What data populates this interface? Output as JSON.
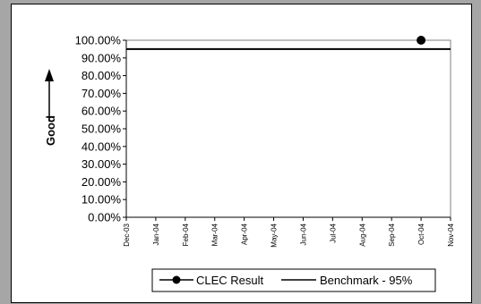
{
  "chart_data": {
    "type": "line",
    "ylabel": "Good",
    "categories": [
      "Dec-03",
      "Jan-04",
      "Feb-04",
      "Mar-04",
      "Apr-04",
      "May-04",
      "Jun-04",
      "Jul-04",
      "Aug-04",
      "Sep-04",
      "Oct-04",
      "Nov-04"
    ],
    "y_ticks": [
      "0.00%",
      "10.00%",
      "20.00%",
      "30.00%",
      "40.00%",
      "50.00%",
      "60.00%",
      "70.00%",
      "80.00%",
      "90.00%",
      "100.00%"
    ],
    "ylim": [
      0,
      100
    ],
    "grid": false,
    "legend_position": "bottom",
    "series": [
      {
        "name": "CLEC Result",
        "values": [
          null,
          null,
          null,
          null,
          null,
          null,
          null,
          null,
          null,
          null,
          100,
          null
        ],
        "color": "#000000",
        "marker": "circle"
      },
      {
        "name": "Benchmark - 95%",
        "values": [
          95,
          95,
          95,
          95,
          95,
          95,
          95,
          95,
          95,
          95,
          95,
          95
        ],
        "color": "#000000",
        "marker": "none"
      }
    ]
  }
}
